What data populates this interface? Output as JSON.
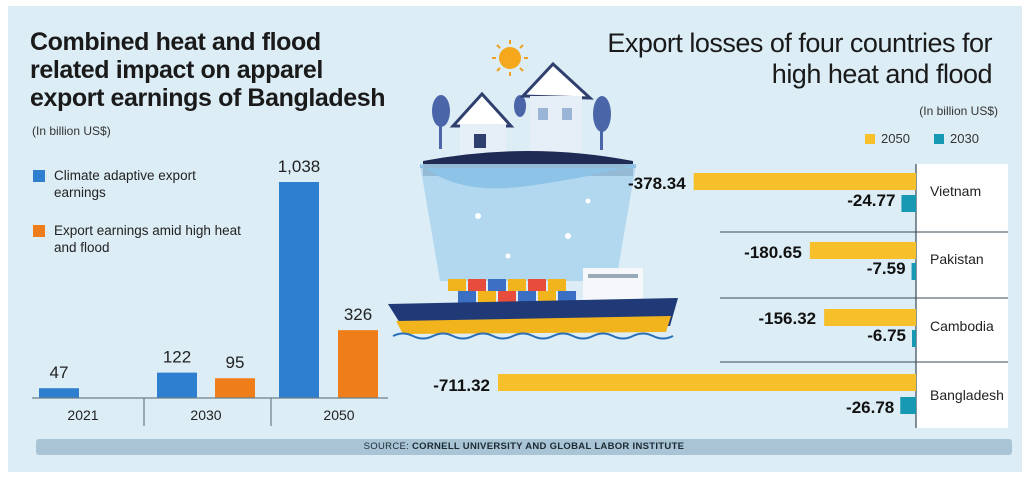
{
  "left_chart": {
    "title": "Combined heat and flood related impact on apparel export earnings of Bangladesh",
    "unit": "(In billion US$)",
    "legend": [
      {
        "label": "Climate adaptive export earnings",
        "color": "#2e7fd0"
      },
      {
        "label": "Export earnings amid high heat and flood",
        "color": "#ef7d1a"
      }
    ]
  },
  "right_chart": {
    "title": "Export losses of four countries for high heat and flood",
    "unit": "(In billion US$)",
    "legend": [
      {
        "label": "2050",
        "color": "#f7c02a"
      },
      {
        "label": "2030",
        "color": "#1799b3"
      }
    ]
  },
  "source": {
    "prefix": "SOURCE:",
    "text": "CORNELL UNIVERSITY AND GLOBAL LABOR INSTITUTE"
  },
  "chart_data": [
    {
      "type": "bar",
      "title": "Combined heat and flood related impact on apparel export earnings of Bangladesh",
      "ylabel": "(In billion US$)",
      "categories": [
        "2021",
        "2030",
        "2050"
      ],
      "series": [
        {
          "name": "Climate adaptive export earnings",
          "values": [
            47,
            122,
            1038
          ],
          "labels": [
            "47",
            "122",
            "1,038"
          ],
          "color": "#2e7fd0"
        },
        {
          "name": "Export earnings amid high heat and flood",
          "values": [
            null,
            95,
            326
          ],
          "labels": [
            "",
            "95",
            "326"
          ],
          "color": "#ef7d1a"
        }
      ],
      "ylim": [
        0,
        1100
      ],
      "grid": false,
      "legend_position": "top-left"
    },
    {
      "type": "bar",
      "orientation": "horizontal",
      "title": "Export losses of four countries for high heat and flood",
      "xlabel": "(In billion US$)",
      "categories": [
        "Vietnam",
        "Pakistan",
        "Cambodia",
        "Bangladesh"
      ],
      "series": [
        {
          "name": "2050",
          "values": [
            -378.34,
            -180.65,
            -156.32,
            -711.32
          ],
          "labels": [
            "-378.34",
            "-180.65",
            "-156.32",
            "-711.32"
          ],
          "color": "#f7c02a"
        },
        {
          "name": "2030",
          "values": [
            -24.77,
            -7.59,
            -6.75,
            -26.78
          ],
          "labels": [
            "-24.77",
            "-7.59",
            "-6.75",
            "-26.78"
          ],
          "color": "#1799b3"
        }
      ],
      "xlim": [
        -711.32,
        0
      ],
      "grid": false,
      "legend_position": "top-right"
    }
  ]
}
